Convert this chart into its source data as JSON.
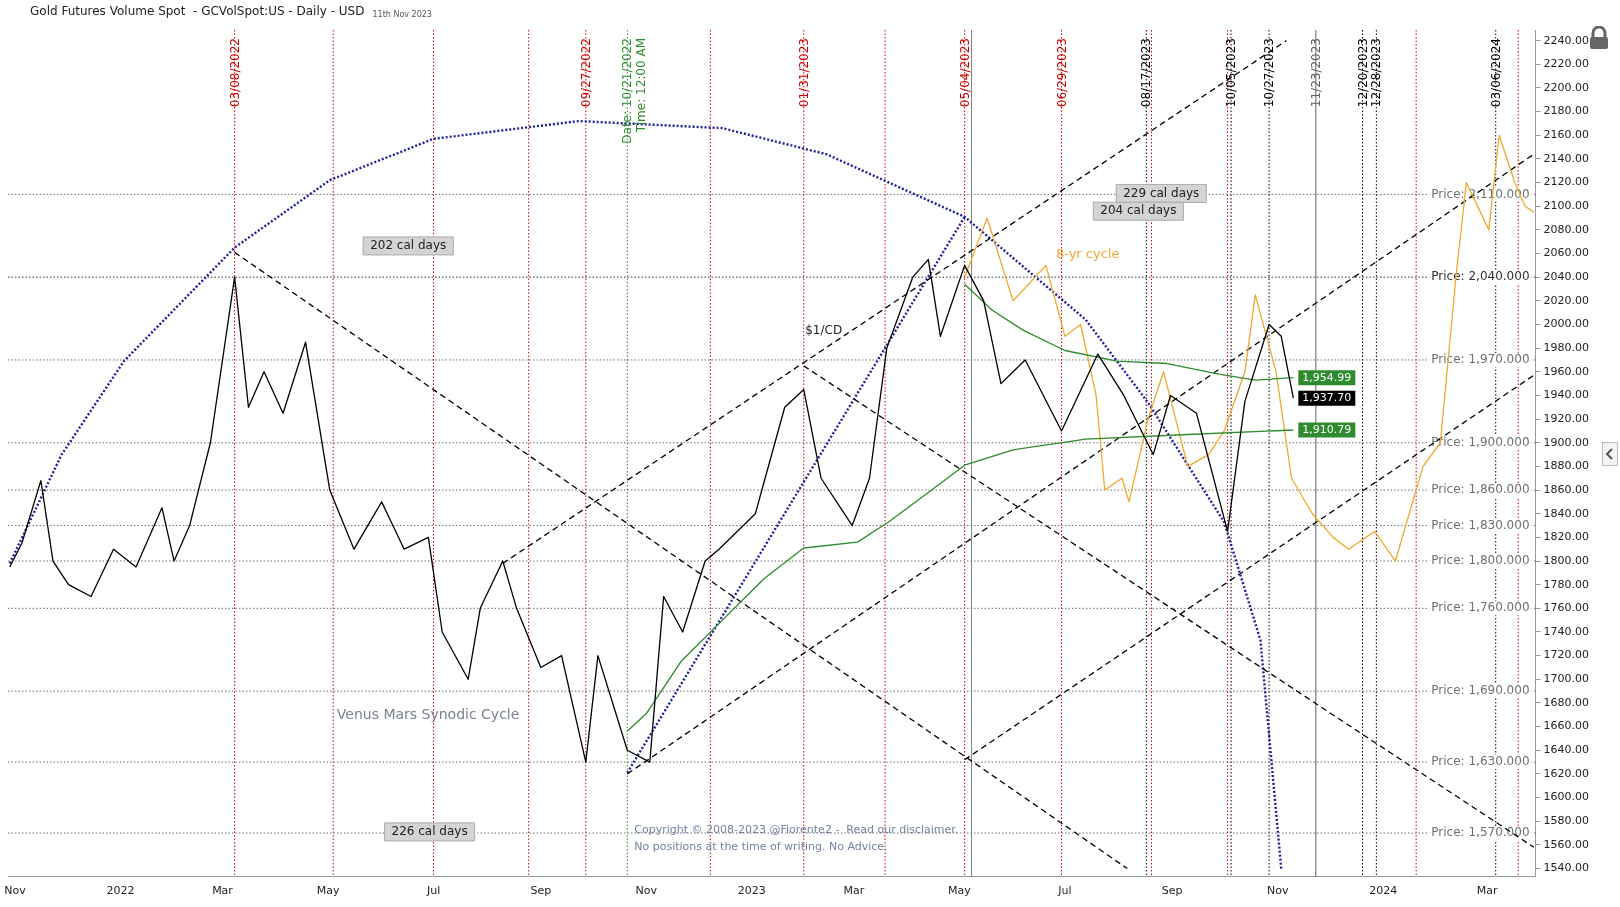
{
  "chart_data": {
    "type": "line",
    "title": "Gold Futures Volume Spot  - GCVolSpot:US - Daily - USD",
    "subtitle": "11th Nov 2023",
    "xlim": [
      "2021-10-28",
      "2024-03-29"
    ],
    "ylim": [
      1533,
      2249
    ],
    "xticks": [
      {
        "value": "2021-11-01",
        "label": "Nov"
      },
      {
        "value": "2022-01-01",
        "label": "2022"
      },
      {
        "value": "2022-03-01",
        "label": "Mar"
      },
      {
        "value": "2022-05-01",
        "label": "May"
      },
      {
        "value": "2022-07-01",
        "label": "Jul"
      },
      {
        "value": "2022-09-01",
        "label": "Sep"
      },
      {
        "value": "2022-11-01",
        "label": "Nov"
      },
      {
        "value": "2023-01-01",
        "label": "2023"
      },
      {
        "value": "2023-03-01",
        "label": "Mar"
      },
      {
        "value": "2023-05-01",
        "label": "May"
      },
      {
        "value": "2023-07-01",
        "label": "Jul"
      },
      {
        "value": "2023-09-01",
        "label": "Sep"
      },
      {
        "value": "2023-11-01",
        "label": "Nov"
      },
      {
        "value": "2024-01-01",
        "label": "2024"
      },
      {
        "value": "2024-03-01",
        "label": "Mar"
      }
    ],
    "yticks": [
      {
        "value": 1540,
        "label": "1540.00"
      },
      {
        "value": 1560,
        "label": "1560.00"
      },
      {
        "value": 1580,
        "label": "1580.00"
      },
      {
        "value": 1600,
        "label": "1600.00"
      },
      {
        "value": 1620,
        "label": "1620.00"
      },
      {
        "value": 1640,
        "label": "1640.00"
      },
      {
        "value": 1660,
        "label": "1660.00"
      },
      {
        "value": 1680,
        "label": "1680.00"
      },
      {
        "value": 1700,
        "label": "1700.00"
      },
      {
        "value": 1720,
        "label": "1720.00"
      },
      {
        "value": 1740,
        "label": "1740.00"
      },
      {
        "value": 1760,
        "label": "1760.00"
      },
      {
        "value": 1780,
        "label": "1780.00"
      },
      {
        "value": 1800,
        "label": "1800.00"
      },
      {
        "value": 1820,
        "label": "1820.00"
      },
      {
        "value": 1840,
        "label": "1840.00"
      },
      {
        "value": 1860,
        "label": "1860.00"
      },
      {
        "value": 1880,
        "label": "1880.00"
      },
      {
        "value": 1900,
        "label": "1900.00"
      },
      {
        "value": 1920,
        "label": "1920.00"
      },
      {
        "value": 1940,
        "label": "1940.00"
      },
      {
        "value": 1960,
        "label": "1960.00"
      },
      {
        "value": 1980,
        "label": "1980.00"
      },
      {
        "value": 2000,
        "label": "2000.00"
      },
      {
        "value": 2020,
        "label": "2020.00"
      },
      {
        "value": 2040,
        "label": "2040.00"
      },
      {
        "value": 2060,
        "label": "2060.00"
      },
      {
        "value": 2080,
        "label": "2080.00"
      },
      {
        "value": 2100,
        "label": "2100.00"
      },
      {
        "value": 2120,
        "label": "2120.00"
      },
      {
        "value": 2140,
        "label": "2140.00"
      },
      {
        "value": 2160,
        "label": "2160.00"
      },
      {
        "value": 2180,
        "label": "2180.00"
      },
      {
        "value": 2200,
        "label": "2200.00"
      },
      {
        "value": 2220,
        "label": "2220.00"
      },
      {
        "value": 2240,
        "label": "2240.00"
      }
    ],
    "grid": false,
    "legend": false,
    "marker": "none",
    "series": [
      {
        "color": "#000000",
        "line_style": "solid",
        "value_labels": [
          null,
          null,
          null,
          null,
          null,
          null,
          null,
          null,
          null,
          null,
          null,
          null,
          null,
          null,
          null,
          null,
          null,
          null,
          null,
          null,
          null,
          null,
          null,
          null,
          null,
          null,
          null,
          null,
          null,
          null,
          null,
          null,
          null,
          null,
          null,
          null,
          null,
          null,
          null,
          null,
          null,
          null,
          null,
          null,
          null,
          null,
          null,
          null,
          null,
          null,
          null,
          null,
          null,
          null,
          null,
          null,
          null,
          null,
          null,
          null,
          null,
          "1,937.70"
        ],
        "x": [
          "2021-10-29",
          "2021-11-05",
          "2021-11-16",
          "2021-11-23",
          "2021-12-02",
          "2021-12-15",
          "2021-12-28",
          "2022-01-10",
          "2022-01-25",
          "2022-02-01",
          "2022-02-10",
          "2022-02-22",
          "2022-03-08",
          "2022-03-16",
          "2022-03-25",
          "2022-04-05",
          "2022-04-18",
          "2022-05-02",
          "2022-05-16",
          "2022-06-01",
          "2022-06-14",
          "2022-06-28",
          "2022-07-06",
          "2022-07-21",
          "2022-07-28",
          "2022-08-10",
          "2022-08-18",
          "2022-09-01",
          "2022-09-13",
          "2022-09-27",
          "2022-10-04",
          "2022-10-21",
          "2022-11-03",
          "2022-11-11",
          "2022-11-22",
          "2022-12-05",
          "2022-12-13",
          "2023-01-03",
          "2023-01-20",
          "2023-01-31",
          "2023-02-10",
          "2023-02-28",
          "2023-03-10",
          "2023-03-20",
          "2023-04-04",
          "2023-04-13",
          "2023-04-20",
          "2023-05-04",
          "2023-05-15",
          "2023-05-25",
          "2023-06-08",
          "2023-06-29",
          "2023-07-20",
          "2023-08-04",
          "2023-08-21",
          "2023-08-31",
          "2023-09-15",
          "2023-10-03",
          "2023-10-13",
          "2023-10-27",
          "2023-11-03",
          "2023-11-10"
        ],
        "values": [
          1795,
          1815,
          1868,
          1800,
          1780,
          1770,
          1810,
          1795,
          1845,
          1800,
          1830,
          1900,
          2040,
          1930,
          1960,
          1925,
          1985,
          1860,
          1810,
          1850,
          1810,
          1820,
          1740,
          1700,
          1760,
          1800,
          1760,
          1710,
          1720,
          1630,
          1720,
          1640,
          1630,
          1770,
          1740,
          1800,
          1810,
          1840,
          1930,
          1945,
          1870,
          1830,
          1870,
          1980,
          2040,
          2055,
          1990,
          2050,
          2020,
          1950,
          1970,
          1910,
          1975,
          1940,
          1890,
          1940,
          1925,
          1825,
          1935,
          2000,
          1990,
          1937.7
        ]
      },
      {
        "color": "#2e8b2e",
        "line_style": "solid",
        "value_labels": [
          null,
          null,
          null,
          null,
          null,
          null,
          null,
          null,
          "1,954.99"
        ],
        "x": [
          "2023-05-04",
          "2023-05-20",
          "2023-06-07",
          "2023-07-01",
          "2023-07-31",
          "2023-08-29",
          "2023-09-28",
          "2023-10-19",
          "2023-11-10"
        ],
        "values": [
          2034,
          2012,
          1995,
          1978,
          1969,
          1967,
          1958,
          1953,
          1954.99
        ]
      },
      {
        "color": "#2e8b2e",
        "line_style": "solid",
        "value_labels": [
          null,
          null,
          null,
          null,
          null,
          null,
          null,
          null,
          null,
          null,
          null,
          null,
          null,
          "1,910.79"
        ],
        "x": [
          "2022-10-21",
          "2022-11-01",
          "2022-11-21",
          "2022-12-15",
          "2023-01-08",
          "2023-01-31",
          "2023-03-03",
          "2023-03-21",
          "2023-04-14",
          "2023-05-04",
          "2023-06-01",
          "2023-07-13",
          "2023-09-10",
          "2023-11-10"
        ],
        "values": [
          1656,
          1671,
          1715,
          1750,
          1785,
          1811,
          1816,
          1833,
          1859,
          1881,
          1894,
          1903,
          1907,
          1910.79
        ]
      },
      {
        "name": "8-yr cycle",
        "color": "#f0a830",
        "line_style": "solid",
        "x": [
          "2023-05-04",
          "2023-05-17",
          "2023-06-01",
          "2023-06-20",
          "2023-07-01",
          "2023-07-10",
          "2023-07-19",
          "2023-07-24",
          "2023-08-03",
          "2023-08-07",
          "2023-08-18",
          "2023-08-27",
          "2023-09-10",
          "2023-09-22",
          "2023-10-01",
          "2023-10-13",
          "2023-10-19",
          "2023-10-31",
          "2023-11-09",
          "2023-11-21",
          "2023-12-03",
          "2023-12-12",
          "2023-12-27",
          "2024-01-08",
          "2024-01-24",
          "2024-02-03",
          "2024-02-12",
          "2024-02-18",
          "2024-03-02",
          "2024-03-08",
          "2024-03-17",
          "2024-03-23",
          "2024-03-28"
        ],
        "values": [
          2040,
          2090,
          2020,
          2050,
          1990,
          2000,
          1940,
          1860,
          1870,
          1850,
          1920,
          1960,
          1880,
          1890,
          1910,
          1960,
          2025,
          1960,
          1870,
          1840,
          1820,
          1810,
          1825,
          1800,
          1880,
          1900,
          2040,
          2120,
          2080,
          2160,
          2120,
          2100,
          2095
        ]
      },
      {
        "color": "#000000",
        "line_style": "dashed",
        "x": [
          "2022-03-08",
          "2023-08-06"
        ],
        "values": [
          2061,
          1540
        ]
      },
      {
        "color": "#000000",
        "line_style": "dashed",
        "x": [
          "2022-08-10",
          "2023-11-06"
        ],
        "values": [
          1798,
          2240
        ]
      },
      {
        "color": "#000000",
        "line_style": "dashed",
        "x": [
          "2022-10-21",
          "2024-03-28"
        ],
        "values": [
          1620,
          2144
        ]
      },
      {
        "color": "#000000",
        "line_style": "dashed",
        "x": [
          "2023-05-04",
          "2024-03-28"
        ],
        "values": [
          1632,
          1957
        ]
      },
      {
        "color": "#000000",
        "line_style": "dashed",
        "x": [
          "2023-01-31",
          "2024-03-28"
        ],
        "values": [
          1965,
          1558
        ]
      },
      {
        "color": "#1f1f9e",
        "line_style": "dotted",
        "x": [
          "2021-10-29",
          "2021-11-28",
          "2022-01-03",
          "2022-03-08",
          "2022-05-02",
          "2022-07-01",
          "2022-09-23",
          "2022-12-15",
          "2023-02-13",
          "2023-05-04",
          "2023-07-13",
          "2023-08-18",
          "2023-10-01",
          "2023-10-22",
          "2023-11-03"
        ],
        "values": [
          1798,
          1890,
          1969,
          2065,
          2122,
          2157,
          2172,
          2166,
          2144,
          2091,
          2004,
          1934,
          1833,
          1733,
          1540
        ]
      },
      {
        "color": "#1f1f9e",
        "line_style": "dotted",
        "x": [
          "2022-10-21",
          "2023-05-04"
        ],
        "values": [
          1621,
          2091
        ]
      }
    ],
    "ref_lines": [
      {
        "axis": "x",
        "value": "2022-03-08",
        "label": "03/08/2022",
        "color": "#cc0000",
        "line_style": "dotted"
      },
      {
        "axis": "x",
        "value": "2022-05-04",
        "label": null,
        "color": "#cc0000",
        "line_style": "dotted"
      },
      {
        "axis": "x",
        "value": "2022-07-01",
        "label": null,
        "color": "#cc0000",
        "line_style": "dotted"
      },
      {
        "axis": "x",
        "value": "2022-08-25",
        "label": null,
        "color": "#cc0000",
        "line_style": "dotted"
      },
      {
        "axis": "x",
        "value": "2022-09-27",
        "label": "09/27/2022",
        "color": "#cc0000",
        "line_style": "dotted"
      },
      {
        "axis": "x",
        "value": "2022-10-21",
        "label": "Date: 10/21/2022\nTime: 12:00 AM",
        "color": "#2e8b2e",
        "line_style": "dotted"
      },
      {
        "axis": "x",
        "value": "2022-12-08",
        "label": null,
        "color": "#cc0000",
        "line_style": "dotted"
      },
      {
        "axis": "x",
        "value": "2023-01-31",
        "label": "01/31/2023",
        "color": "#cc0000",
        "line_style": "dotted"
      },
      {
        "axis": "x",
        "value": "2023-03-19",
        "label": null,
        "color": "#cc0000",
        "line_style": "dotted"
      },
      {
        "axis": "x",
        "value": "2023-05-04",
        "label": "05/04/2023",
        "color": "#cc0000",
        "line_style": "dotted"
      },
      {
        "axis": "x",
        "value": "2023-05-08",
        "label": null,
        "color": "#808080",
        "line_style": "solid"
      },
      {
        "axis": "x",
        "value": "2023-06-29",
        "label": "06/29/2023",
        "color": "#cc0000",
        "line_style": "dotted"
      },
      {
        "axis": "x",
        "value": "2023-08-17",
        "label": "08/17/2023",
        "color": "#000000",
        "line_style": "dotted"
      },
      {
        "axis": "x",
        "value": "2023-08-20",
        "label": null,
        "color": "#cc0000",
        "line_style": "dotted"
      },
      {
        "axis": "x",
        "value": "2023-10-03",
        "label": null,
        "color": "#cc0000",
        "line_style": "dotted"
      },
      {
        "axis": "x",
        "value": "2023-10-05",
        "label": "10/05/2023",
        "color": "#000000",
        "line_style": "dotted"
      },
      {
        "axis": "x",
        "value": "2023-10-27",
        "label": "10/27/2023",
        "color": "#000000",
        "line_style": "dotted"
      },
      {
        "axis": "x",
        "value": "2023-11-23",
        "label": "11/23/2023",
        "color": "#606060",
        "line_style": "solid"
      },
      {
        "axis": "x",
        "value": "2023-12-20",
        "label": "12/20/2023",
        "color": "#000000",
        "line_style": "dotted"
      },
      {
        "axis": "x",
        "value": "2023-12-28",
        "label": "12/28/2023",
        "color": "#000000",
        "line_style": "dotted"
      },
      {
        "axis": "x",
        "value": "2024-01-20",
        "label": null,
        "color": "#cc0000",
        "line_style": "dotted"
      },
      {
        "axis": "x",
        "value": "2024-03-06",
        "label": "03/06/2024",
        "color": "#000000",
        "line_style": "dotted"
      },
      {
        "axis": "x",
        "value": "2024-03-19",
        "label": null,
        "color": "#cc0000",
        "line_style": "dotted"
      },
      {
        "axis": "y",
        "value": 2110,
        "label": "Price: 2,110.000",
        "color": "#707070",
        "line_style": "dotted"
      },
      {
        "axis": "y",
        "value": 2040,
        "label": "Price: 2,040.000",
        "color": "#303030",
        "line_style": "dotted"
      },
      {
        "axis": "y",
        "value": 1970,
        "label": "Price: 1,970.000",
        "color": "#707070",
        "line_style": "dotted"
      },
      {
        "axis": "y",
        "value": 1900,
        "label": "Price: 1,900.000",
        "color": "#707070",
        "line_style": "dotted"
      },
      {
        "axis": "y",
        "value": 1860,
        "label": "Price: 1,860.000",
        "color": "#707070",
        "line_style": "dotted"
      },
      {
        "axis": "y",
        "value": 1830,
        "label": "Price: 1,830.000",
        "color": "#707070",
        "line_style": "dotted"
      },
      {
        "axis": "y",
        "value": 1800,
        "label": "Price: 1,800.000",
        "color": "#707070",
        "line_style": "dotted"
      },
      {
        "axis": "y",
        "value": 1760,
        "label": "Price: 1,760.000",
        "color": "#707070",
        "line_style": "dotted"
      },
      {
        "axis": "y",
        "value": 1690,
        "label": "Price: 1,690.000",
        "color": "#707070",
        "line_style": "dotted"
      },
      {
        "axis": "y",
        "value": 1630,
        "label": "Price: 1,630.000",
        "color": "#707070",
        "line_style": "dotted"
      },
      {
        "axis": "y",
        "value": 1570,
        "label": "Price: 1,570.000",
        "color": "#707070",
        "line_style": "dotted"
      }
    ],
    "annotations": [
      "202 cal days",
      "226 cal days",
      "229 cal days",
      "204 cal days",
      "$1/CD",
      "Venus Mars Synodic Cycle",
      "Copyright © 2008-2023 @Fiorente2 -  Read our disclaimer.",
      "No positions at the time of writing. No Advice."
    ]
  }
}
